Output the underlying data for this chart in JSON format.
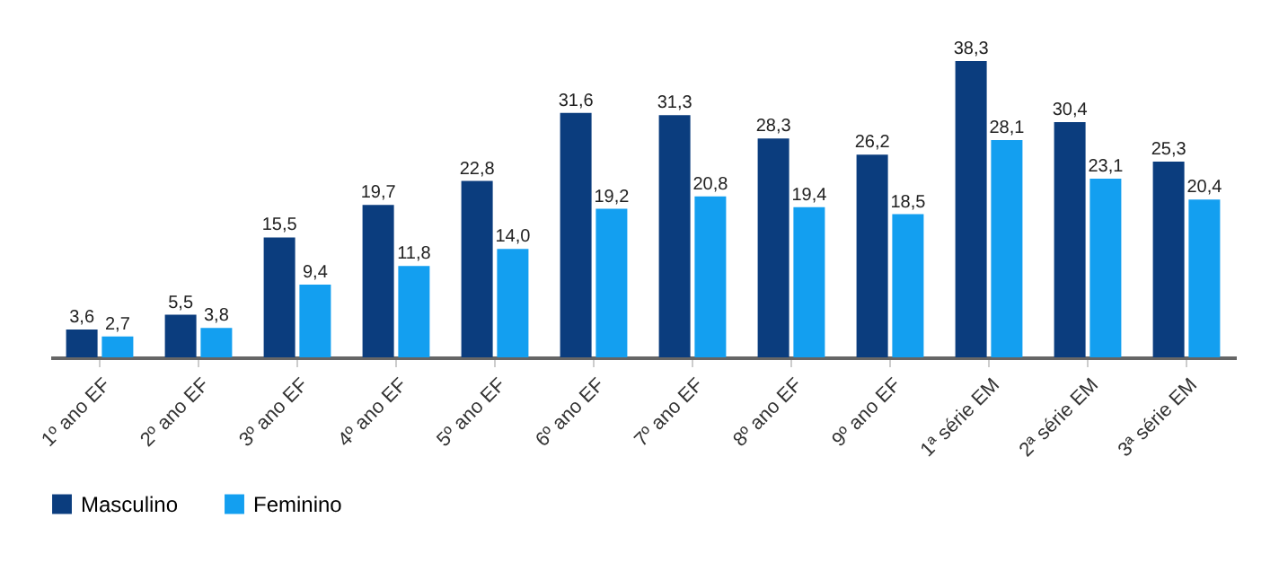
{
  "chart_data": {
    "type": "bar",
    "categories": [
      "1º ano EF",
      "2º ano EF",
      "3º ano EF",
      "4º ano EF",
      "5º ano EF",
      "6º ano EF",
      "7º ano EF",
      "8º ano EF",
      "9º ano EF",
      "1ª série EM",
      "2ª série EM",
      "3ª série EM"
    ],
    "series": [
      {
        "name": "Masculino",
        "color": "#0b3d7e",
        "values": [
          3.6,
          5.5,
          15.5,
          19.7,
          22.8,
          31.6,
          31.3,
          28.3,
          26.2,
          38.3,
          30.4,
          25.3
        ],
        "value_labels": [
          "3,6",
          "5,5",
          "15,5",
          "19,7",
          "22,8",
          "31,6",
          "31,3",
          "28,3",
          "26,2",
          "38,3",
          "30,4",
          "25,3"
        ]
      },
      {
        "name": "Feminino",
        "color": "#139ff0",
        "values": [
          2.7,
          3.8,
          9.4,
          11.8,
          14.0,
          19.2,
          20.8,
          19.4,
          18.5,
          28.1,
          23.1,
          20.4
        ],
        "value_labels": [
          "2,7",
          "3,8",
          "9,4",
          "11,8",
          "14,0",
          "19,2",
          "20,8",
          "19,4",
          "18,5",
          "28,1",
          "23,1",
          "20,4"
        ]
      }
    ],
    "tick_labels": "x",
    "legend": "bottom"
  }
}
